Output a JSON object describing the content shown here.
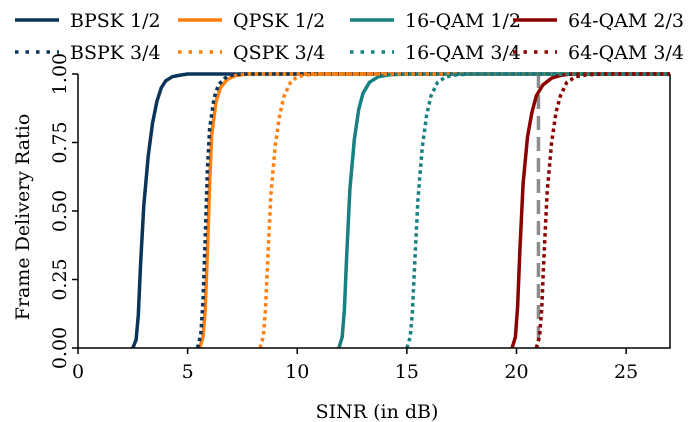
{
  "chart_data": {
    "type": "line",
    "title": "",
    "xlabel": "SINR (in dB)",
    "ylabel": "Frame Delivery Ratio",
    "xlim": [
      0,
      27
    ],
    "ylim": [
      0,
      1
    ],
    "xticks": [
      0,
      5,
      10,
      15,
      20,
      25
    ],
    "xtick_labels": [
      "0",
      "5",
      "10",
      "15",
      "20",
      "25"
    ],
    "yticks": [
      0,
      0.25,
      0.5,
      0.75,
      1.0
    ],
    "ytick_labels": [
      "0.00",
      "0.25",
      "0.50",
      "0.75",
      "1.00"
    ],
    "grid": false,
    "legend_position": "top",
    "reference_line": {
      "x": 21,
      "style": "dashed",
      "color": "#8c8c8c"
    },
    "series": [
      {
        "name": "BPSK 1/2",
        "color": "#0b3558",
        "dash": "solid",
        "x": [
          2.5,
          2.65,
          2.75,
          2.85,
          3.0,
          3.2,
          3.4,
          3.6,
          3.8,
          4.0,
          4.3,
          4.6,
          5.0,
          5.5,
          27
        ],
        "y": [
          0.0,
          0.03,
          0.12,
          0.3,
          0.52,
          0.7,
          0.82,
          0.9,
          0.95,
          0.975,
          0.99,
          0.995,
          1.0,
          1.0,
          1.0
        ]
      },
      {
        "name": "QPSK 1/2",
        "color": "#ff7f0e",
        "dash": "solid",
        "x": [
          5.55,
          5.7,
          5.8,
          5.9,
          6.0,
          6.1,
          6.3,
          6.5,
          6.8,
          7.2,
          7.8,
          8.5,
          27
        ],
        "y": [
          0.0,
          0.04,
          0.14,
          0.35,
          0.6,
          0.78,
          0.9,
          0.95,
          0.98,
          0.995,
          1.0,
          1.0,
          1.0
        ]
      },
      {
        "name": "16-QAM 1/2",
        "color": "#178080",
        "dash": "solid",
        "x": [
          11.9,
          12.05,
          12.15,
          12.25,
          12.4,
          12.6,
          12.8,
          13.0,
          13.3,
          13.7,
          14.2,
          15.0,
          27
        ],
        "y": [
          0.0,
          0.04,
          0.14,
          0.33,
          0.58,
          0.76,
          0.87,
          0.93,
          0.97,
          0.99,
          0.997,
          1.0,
          1.0
        ]
      },
      {
        "name": "64-QAM 2/3",
        "color": "#8b0000",
        "dash": "solid",
        "x": [
          19.8,
          19.95,
          20.05,
          20.15,
          20.3,
          20.5,
          20.7,
          20.9,
          21.2,
          21.6,
          22.0,
          22.5,
          27
        ],
        "y": [
          0.0,
          0.04,
          0.15,
          0.35,
          0.6,
          0.77,
          0.86,
          0.92,
          0.96,
          0.985,
          0.995,
          1.0,
          1.0
        ]
      },
      {
        "name": "BSPK 3/4",
        "color": "#0b3558",
        "dash": "dotted",
        "x": [
          5.45,
          5.6,
          5.7,
          5.8,
          5.9,
          6.0,
          6.2,
          6.4,
          6.7,
          7.0,
          7.5,
          27
        ],
        "y": [
          0.0,
          0.05,
          0.17,
          0.4,
          0.65,
          0.8,
          0.91,
          0.96,
          0.985,
          0.995,
          1.0,
          1.0
        ]
      },
      {
        "name": "QSPK 3/4",
        "color": "#ff7f0e",
        "dash": "dotted",
        "x": [
          8.3,
          8.45,
          8.55,
          8.65,
          8.8,
          9.0,
          9.2,
          9.4,
          9.7,
          10.0,
          10.5,
          11.2,
          27
        ],
        "y": [
          0.0,
          0.04,
          0.14,
          0.32,
          0.56,
          0.74,
          0.85,
          0.92,
          0.97,
          0.99,
          0.997,
          1.0,
          1.0
        ]
      },
      {
        "name": "16-QAM 3/4",
        "color": "#178080",
        "dash": "dotted",
        "x": [
          15.0,
          15.15,
          15.25,
          15.35,
          15.5,
          15.7,
          15.9,
          16.1,
          16.4,
          16.8,
          17.3,
          18.0,
          27
        ],
        "y": [
          0.0,
          0.04,
          0.13,
          0.3,
          0.54,
          0.73,
          0.85,
          0.92,
          0.97,
          0.99,
          0.997,
          1.0,
          1.0
        ]
      },
      {
        "name": "64-QAM 3/4",
        "color": "#8b0000",
        "dash": "dotted",
        "x": [
          20.9,
          21.05,
          21.15,
          21.25,
          21.4,
          21.6,
          21.8,
          22.0,
          22.3,
          22.7,
          23.2,
          24.0,
          27
        ],
        "y": [
          0.0,
          0.04,
          0.14,
          0.33,
          0.57,
          0.75,
          0.86,
          0.92,
          0.97,
          0.99,
          0.997,
          1.0,
          1.0
        ]
      }
    ]
  }
}
